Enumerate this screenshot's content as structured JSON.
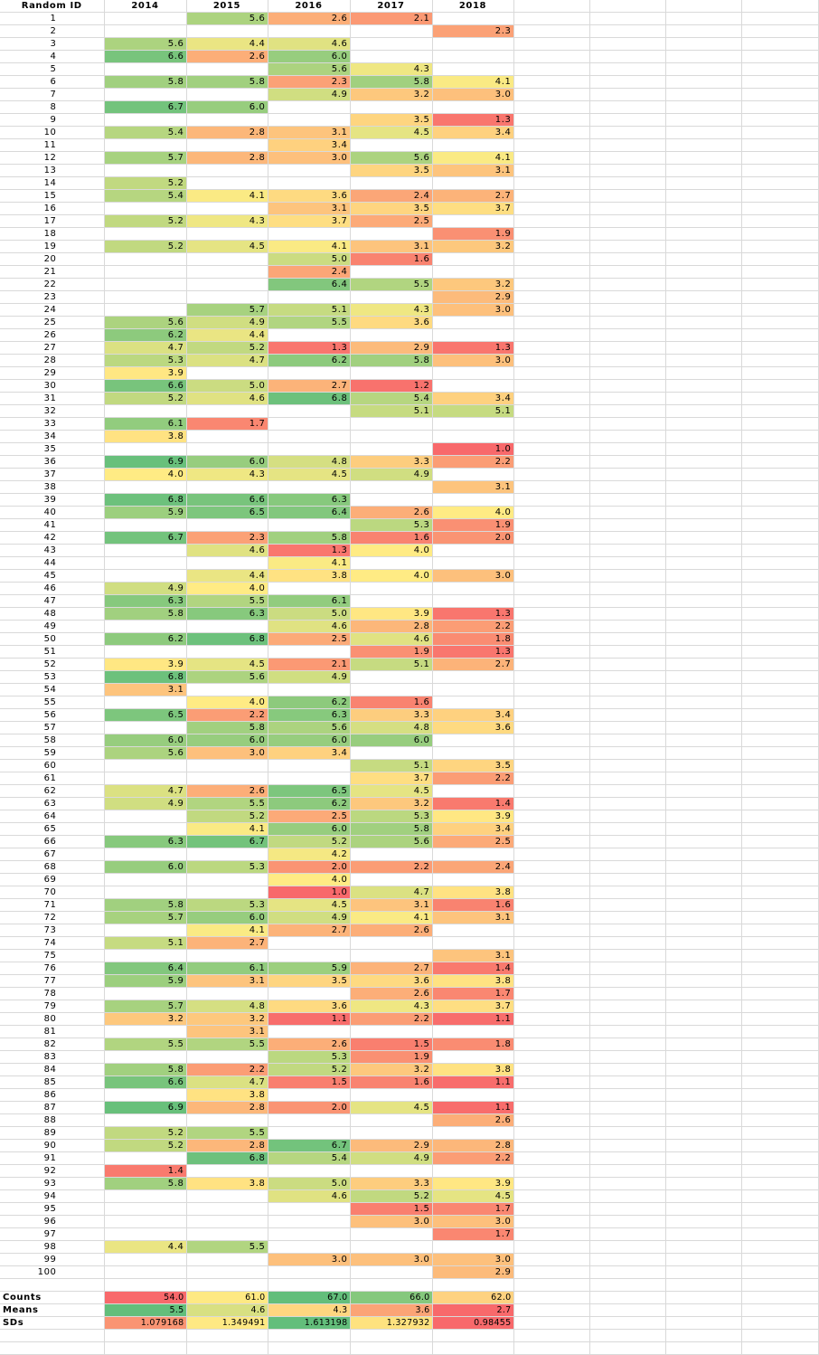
{
  "header": [
    "Random ID",
    "2014",
    "2015",
    "2016",
    "2017",
    "2018"
  ],
  "rows": [
    [
      "1",
      "",
      "5.6",
      "2.6",
      "2.1",
      ""
    ],
    [
      "2",
      "",
      "",
      "",
      "",
      "2.3"
    ],
    [
      "3",
      "5.6",
      "4.4",
      "4.6",
      "",
      ""
    ],
    [
      "4",
      "6.6",
      "2.6",
      "6.0",
      "",
      ""
    ],
    [
      "5",
      "",
      "",
      "5.6",
      "4.3",
      ""
    ],
    [
      "6",
      "5.8",
      "5.8",
      "2.3",
      "5.8",
      "4.1"
    ],
    [
      "7",
      "",
      "",
      "4.9",
      "3.2",
      "3.0"
    ],
    [
      "8",
      "6.7",
      "6.0",
      "",
      "",
      ""
    ],
    [
      "9",
      "",
      "",
      "",
      "3.5",
      "1.3"
    ],
    [
      "10",
      "5.4",
      "2.8",
      "3.1",
      "4.5",
      "3.4"
    ],
    [
      "11",
      "",
      "",
      "3.4",
      "",
      ""
    ],
    [
      "12",
      "5.7",
      "2.8",
      "3.0",
      "5.6",
      "4.1"
    ],
    [
      "13",
      "",
      "",
      "",
      "3.5",
      "3.1"
    ],
    [
      "14",
      "5.2",
      "",
      "",
      "",
      ""
    ],
    [
      "15",
      "5.4",
      "4.1",
      "3.6",
      "2.4",
      "2.7"
    ],
    [
      "16",
      "",
      "",
      "3.1",
      "3.5",
      "3.7"
    ],
    [
      "17",
      "5.2",
      "4.3",
      "3.7",
      "2.5",
      ""
    ],
    [
      "18",
      "",
      "",
      "",
      "",
      "1.9"
    ],
    [
      "19",
      "5.2",
      "4.5",
      "4.1",
      "3.1",
      "3.2"
    ],
    [
      "20",
      "",
      "",
      "5.0",
      "1.6",
      ""
    ],
    [
      "21",
      "",
      "",
      "2.4",
      "",
      ""
    ],
    [
      "22",
      "",
      "",
      "6.4",
      "5.5",
      "3.2"
    ],
    [
      "23",
      "",
      "",
      "",
      "",
      "2.9"
    ],
    [
      "24",
      "",
      "5.7",
      "5.1",
      "4.3",
      "3.0"
    ],
    [
      "25",
      "5.6",
      "4.9",
      "5.5",
      "3.6",
      ""
    ],
    [
      "26",
      "6.2",
      "4.4",
      "",
      "",
      ""
    ],
    [
      "27",
      "4.7",
      "5.2",
      "1.3",
      "2.9",
      "1.3"
    ],
    [
      "28",
      "5.3",
      "4.7",
      "6.2",
      "5.8",
      "3.0"
    ],
    [
      "29",
      "3.9",
      "",
      "",
      "",
      ""
    ],
    [
      "30",
      "6.6",
      "5.0",
      "2.7",
      "1.2",
      ""
    ],
    [
      "31",
      "5.2",
      "4.6",
      "6.8",
      "5.4",
      "3.4"
    ],
    [
      "32",
      "",
      "",
      "",
      "5.1",
      "5.1"
    ],
    [
      "33",
      "6.1",
      "1.7",
      "",
      "",
      ""
    ],
    [
      "34",
      "3.8",
      "",
      "",
      "",
      ""
    ],
    [
      "35",
      "",
      "",
      "",
      "",
      "1.0"
    ],
    [
      "36",
      "6.9",
      "6.0",
      "4.8",
      "3.3",
      "2.2"
    ],
    [
      "37",
      "4.0",
      "4.3",
      "4.5",
      "4.9",
      ""
    ],
    [
      "38",
      "",
      "",
      "",
      "",
      "3.1"
    ],
    [
      "39",
      "6.8",
      "6.6",
      "6.3",
      "",
      ""
    ],
    [
      "40",
      "5.9",
      "6.5",
      "6.4",
      "2.6",
      "4.0"
    ],
    [
      "41",
      "",
      "",
      "",
      "5.3",
      "1.9"
    ],
    [
      "42",
      "6.7",
      "2.3",
      "5.8",
      "1.6",
      "2.0"
    ],
    [
      "43",
      "",
      "4.6",
      "1.3",
      "4.0",
      ""
    ],
    [
      "44",
      "",
      "",
      "4.1",
      "",
      ""
    ],
    [
      "45",
      "",
      "4.4",
      "3.8",
      "4.0",
      "3.0"
    ],
    [
      "46",
      "4.9",
      "4.0",
      "",
      "",
      ""
    ],
    [
      "47",
      "6.3",
      "5.5",
      "6.1",
      "",
      ""
    ],
    [
      "48",
      "5.8",
      "6.3",
      "5.0",
      "3.9",
      "1.3"
    ],
    [
      "49",
      "",
      "",
      "4.6",
      "2.8",
      "2.2"
    ],
    [
      "50",
      "6.2",
      "6.8",
      "2.5",
      "4.6",
      "1.8"
    ],
    [
      "51",
      "",
      "",
      "",
      "1.9",
      "1.3"
    ],
    [
      "52",
      "3.9",
      "4.5",
      "2.1",
      "5.1",
      "2.7"
    ],
    [
      "53",
      "6.8",
      "5.6",
      "4.9",
      "",
      ""
    ],
    [
      "54",
      "3.1",
      "",
      "",
      "",
      ""
    ],
    [
      "55",
      "",
      "4.0",
      "6.2",
      "1.6",
      ""
    ],
    [
      "56",
      "6.5",
      "2.2",
      "6.3",
      "3.3",
      "3.4"
    ],
    [
      "57",
      "",
      "5.8",
      "5.6",
      "4.8",
      "3.6"
    ],
    [
      "58",
      "6.0",
      "6.0",
      "6.0",
      "6.0",
      ""
    ],
    [
      "59",
      "5.6",
      "3.0",
      "3.4",
      "",
      ""
    ],
    [
      "60",
      "",
      "",
      "",
      "5.1",
      "3.5"
    ],
    [
      "61",
      "",
      "",
      "",
      "3.7",
      "2.2"
    ],
    [
      "62",
      "4.7",
      "2.6",
      "6.5",
      "4.5",
      ""
    ],
    [
      "63",
      "4.9",
      "5.5",
      "6.2",
      "3.2",
      "1.4"
    ],
    [
      "64",
      "",
      "5.2",
      "2.5",
      "5.3",
      "3.9"
    ],
    [
      "65",
      "",
      "4.1",
      "6.0",
      "5.8",
      "3.4"
    ],
    [
      "66",
      "6.3",
      "6.7",
      "5.2",
      "5.6",
      "2.5"
    ],
    [
      "67",
      "",
      "",
      "4.2",
      "",
      ""
    ],
    [
      "68",
      "6.0",
      "5.3",
      "2.0",
      "2.2",
      "2.4"
    ],
    [
      "69",
      "",
      "",
      "4.0",
      "",
      ""
    ],
    [
      "70",
      "",
      "",
      "1.0",
      "4.7",
      "3.8"
    ],
    [
      "71",
      "5.8",
      "5.3",
      "4.5",
      "3.1",
      "1.6"
    ],
    [
      "72",
      "5.7",
      "6.0",
      "4.9",
      "4.1",
      "3.1"
    ],
    [
      "73",
      "",
      "4.1",
      "2.7",
      "2.6",
      ""
    ],
    [
      "74",
      "5.1",
      "2.7",
      "",
      "",
      ""
    ],
    [
      "75",
      "",
      "",
      "",
      "",
      "3.1"
    ],
    [
      "76",
      "6.4",
      "6.1",
      "5.9",
      "2.7",
      "1.4"
    ],
    [
      "77",
      "5.9",
      "3.1",
      "3.5",
      "3.6",
      "3.8"
    ],
    [
      "78",
      "",
      "",
      "",
      "2.6",
      "1.7"
    ],
    [
      "79",
      "5.7",
      "4.8",
      "3.6",
      "4.3",
      "3.7"
    ],
    [
      "80",
      "3.2",
      "3.2",
      "1.1",
      "2.2",
      "1.1"
    ],
    [
      "81",
      "",
      "3.1",
      "",
      "",
      ""
    ],
    [
      "82",
      "5.5",
      "5.5",
      "2.6",
      "1.5",
      "1.8"
    ],
    [
      "83",
      "",
      "",
      "5.3",
      "1.9",
      ""
    ],
    [
      "84",
      "5.8",
      "2.2",
      "5.2",
      "3.2",
      "3.8"
    ],
    [
      "85",
      "6.6",
      "4.7",
      "1.5",
      "1.6",
      "1.1"
    ],
    [
      "86",
      "",
      "3.8",
      "",
      "",
      ""
    ],
    [
      "87",
      "6.9",
      "2.8",
      "2.0",
      "4.5",
      "1.1"
    ],
    [
      "88",
      "",
      "",
      "",
      "",
      "2.6"
    ],
    [
      "89",
      "5.2",
      "5.5",
      "",
      "",
      ""
    ],
    [
      "90",
      "5.2",
      "2.8",
      "6.7",
      "2.9",
      "2.8"
    ],
    [
      "91",
      "",
      "6.8",
      "5.4",
      "4.9",
      "2.2"
    ],
    [
      "92",
      "1.4",
      "",
      "",
      "",
      ""
    ],
    [
      "93",
      "5.8",
      "3.8",
      "5.0",
      "3.3",
      "3.9"
    ],
    [
      "94",
      "",
      "",
      "4.6",
      "5.2",
      "4.5"
    ],
    [
      "95",
      "",
      "",
      "",
      "1.5",
      "1.7"
    ],
    [
      "96",
      "",
      "",
      "",
      "3.0",
      "3.0"
    ],
    [
      "97",
      "",
      "",
      "",
      "",
      "1.7"
    ],
    [
      "98",
      "4.4",
      "5.5",
      "",
      "",
      ""
    ],
    [
      "99",
      "",
      "",
      "3.0",
      "3.0",
      "3.0"
    ],
    [
      "100",
      "",
      "",
      "",
      "",
      "2.9"
    ]
  ],
  "summary": [
    {
      "label": "Counts",
      "values": [
        "54.0",
        "61.0",
        "67.0",
        "66.0",
        "62.0"
      ],
      "colors": [
        "#f8696b",
        "#fee983",
        "#63be7b",
        "#85c87d",
        "#fed280"
      ]
    },
    {
      "label": "Means",
      "values": [
        "5.5",
        "4.6",
        "4.3",
        "3.6",
        "2.7"
      ],
      "colors": [
        "#63be7b",
        "#d8e082",
        "#fed680",
        "#fba476",
        "#f8696b"
      ]
    },
    {
      "label": "SDs",
      "values": [
        "1.079168",
        "1.349491",
        "1.613198",
        "1.327932",
        "0.98455"
      ],
      "colors": [
        "#fa9473",
        "#fee983",
        "#63be7b",
        "#fee27f",
        "#f8696b"
      ]
    }
  ],
  "scale": {
    "min": 1.0,
    "mid": 4.0,
    "max": 7.0,
    "low_color": "#f8696b",
    "mid_color": "#ffeb84",
    "high_color": "#63be7b"
  }
}
